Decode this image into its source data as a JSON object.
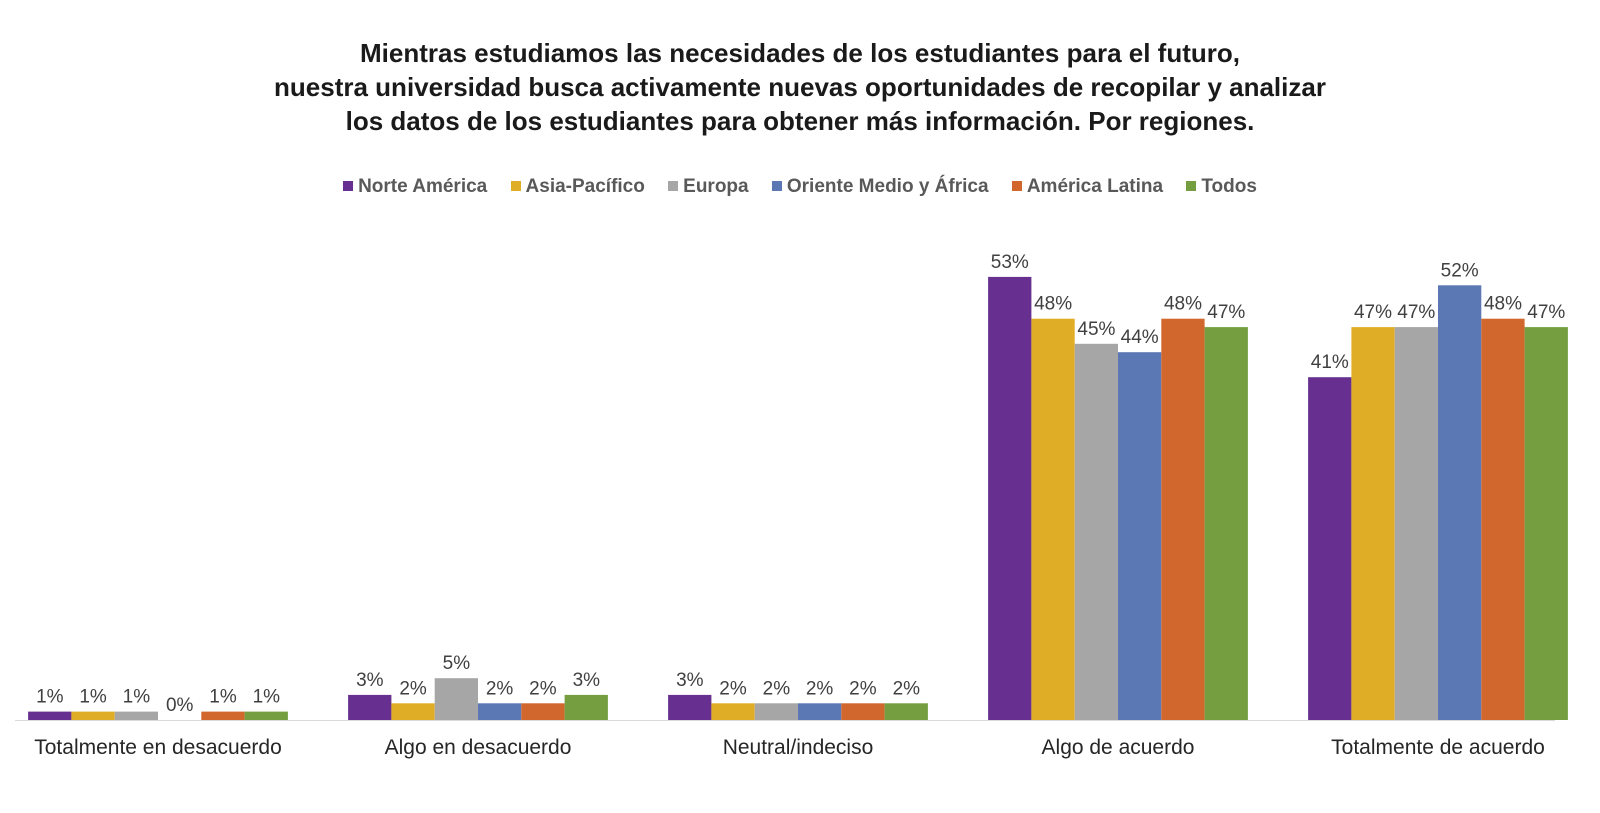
{
  "chart_data": {
    "type": "bar",
    "title": [
      "Mientras estudiamos las necesidades de los estudiantes para el futuro,",
      "nuestra universidad busca activamente nuevas oportunidades de recopilar y analizar",
      "los datos de los estudiantes para obtener más información. Por regiones."
    ],
    "categories": [
      "Totalmente en desacuerdo",
      "Algo en desacuerdo",
      "Neutral/indeciso",
      "Algo de acuerdo",
      "Totalmente de acuerdo"
    ],
    "series": [
      {
        "name": "Norte América",
        "color": "#673090",
        "values": [
          1,
          3,
          3,
          53,
          41
        ]
      },
      {
        "name": "Asia-Pacífico",
        "color": "#E0AE26",
        "values": [
          1,
          2,
          2,
          48,
          47
        ]
      },
      {
        "name": "Europa",
        "color": "#A6A6A6",
        "values": [
          1,
          5,
          2,
          45,
          47
        ]
      },
      {
        "name": "Oriente Medio y África",
        "color": "#5B78B4",
        "values": [
          0,
          2,
          2,
          44,
          52
        ]
      },
      {
        "name": "América Latina",
        "color": "#D2672E",
        "values": [
          1,
          2,
          2,
          48,
          48
        ]
      },
      {
        "name": "Todos",
        "color": "#749E3F",
        "values": [
          1,
          3,
          2,
          47,
          47
        ]
      }
    ],
    "value_suffix": "%",
    "legend_position": "top",
    "grid": false,
    "ylim": [
      0,
      55
    ]
  }
}
